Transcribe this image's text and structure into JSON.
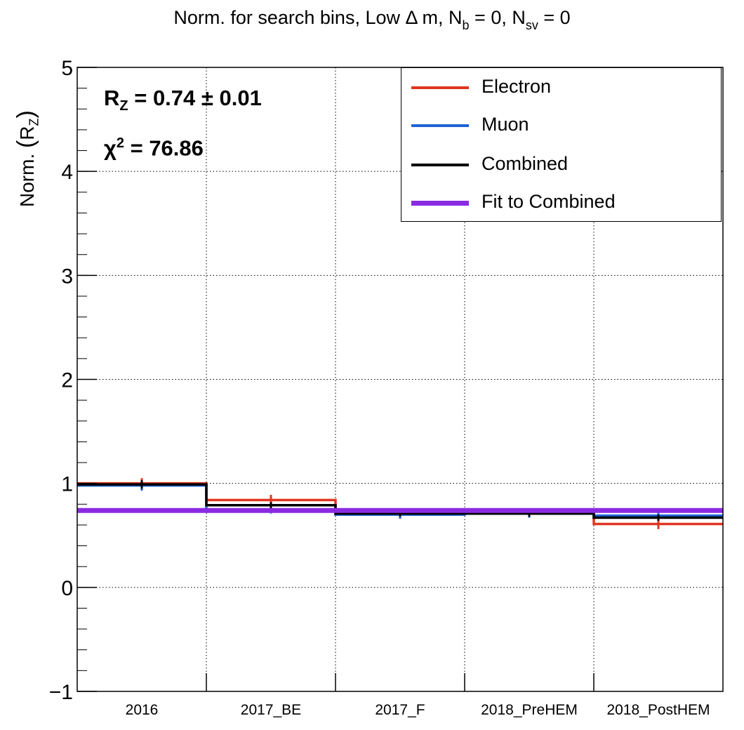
{
  "title": {
    "main": "Norm. for search bins, Low Δ m, N",
    "sub1": "b",
    "mid": " = 0, N",
    "sub2": "sv",
    "end": " = 0"
  },
  "yaxis_label": {
    "prefix": "Norm. ",
    "var": "R",
    "sub": "Z"
  },
  "stats": {
    "rz_label": "R",
    "rz_sub": "Z",
    "rz_value": " = 0.74  ± 0.01",
    "chi2_label": "χ",
    "chi2_sup": "2",
    "chi2_value": " = 76.86"
  },
  "legend": [
    {
      "label": "Electron",
      "color": "#e0361f"
    },
    {
      "label": "Muon",
      "color": "#1f63d6"
    },
    {
      "label": "Combined",
      "color": "#000000"
    },
    {
      "label": "Fit to Combined",
      "color": "#8a2be2"
    }
  ],
  "chart_data": {
    "type": "line",
    "title": "Norm. for search bins, Low Δ m, N_b = 0, N_sv = 0",
    "xlabel": "",
    "ylabel": "Norm. (R_Z)",
    "ylim": [
      -1,
      5
    ],
    "yticks": [
      -1,
      0,
      1,
      2,
      3,
      4,
      5
    ],
    "grid": true,
    "legend_position": "top-right",
    "categories": [
      "2016",
      "2017_BE",
      "2017_F",
      "2018_PreHEM",
      "2018_PostHEM"
    ],
    "series": [
      {
        "name": "Electron",
        "color": "#e0361f",
        "values": [
          1.0,
          0.84,
          0.72,
          0.71,
          0.61
        ],
        "errors": [
          0.05,
          0.05,
          0.04,
          0.04,
          0.05
        ]
      },
      {
        "name": "Muon",
        "color": "#1f63d6",
        "values": [
          0.98,
          0.75,
          0.7,
          0.71,
          0.69
        ],
        "errors": [
          0.05,
          0.04,
          0.04,
          0.04,
          0.04
        ]
      },
      {
        "name": "Combined",
        "color": "#000000",
        "values": [
          0.99,
          0.79,
          0.71,
          0.71,
          0.67
        ],
        "errors": [
          0.04,
          0.03,
          0.03,
          0.03,
          0.03
        ]
      },
      {
        "name": "Fit to Combined",
        "color": "#8a2be2",
        "values": [
          0.74,
          0.74,
          0.74,
          0.74,
          0.74
        ]
      }
    ]
  }
}
